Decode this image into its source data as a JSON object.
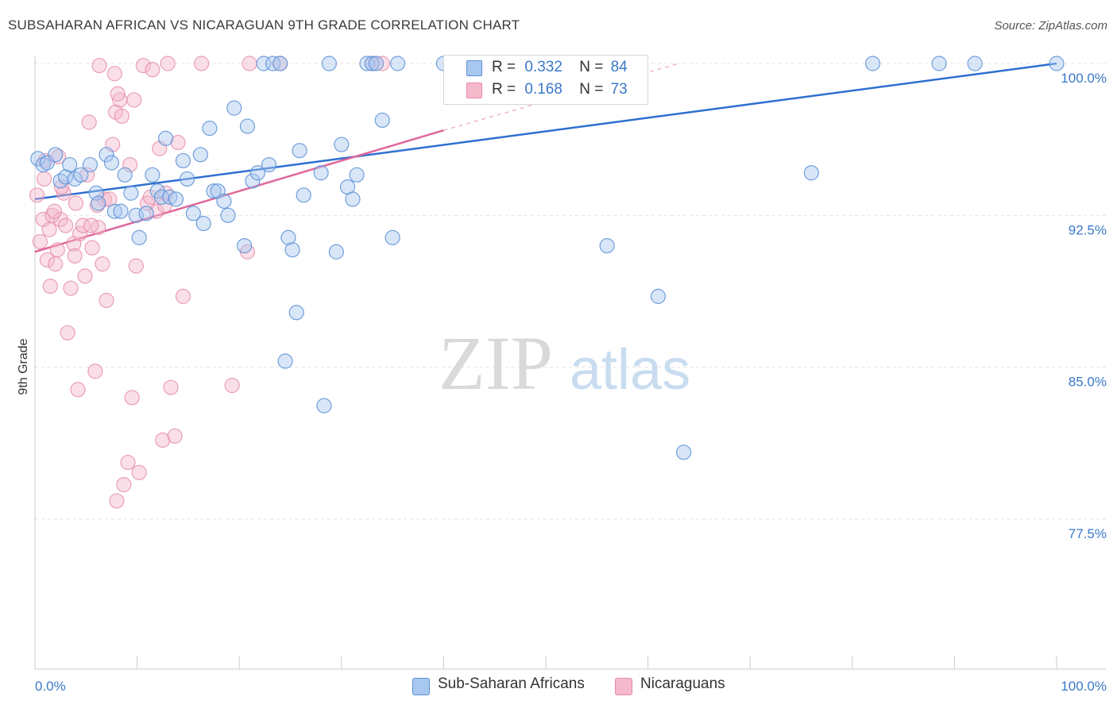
{
  "title": "SUBSAHARAN AFRICAN VS NICARAGUAN 9TH GRADE CORRELATION CHART",
  "source": "Source: ZipAtlas.com",
  "watermark": {
    "zip": "ZIP",
    "atlas": "atlas"
  },
  "colors": {
    "blue_fill": "#a9c8ef",
    "blue_stroke": "#5b8fd6",
    "blue_line": "#2e6fd0",
    "pink_fill": "#f5b9cc",
    "pink_stroke": "#e58aa7",
    "pink_line": "#e0679a",
    "tick_label": "#3a78c9",
    "grid": "#e3e3e3"
  },
  "stats": [
    {
      "r_label": "R =",
      "r_value": "0.332",
      "n_label": "N =",
      "n_value": "84",
      "series": "blue"
    },
    {
      "r_label": "R =",
      "r_value": "0.168",
      "n_label": "N =",
      "n_value": "73",
      "series": "pink"
    }
  ],
  "legend": [
    {
      "label": "Sub-Saharan Africans",
      "series": "blue"
    },
    {
      "label": "Nicaraguans",
      "series": "pink"
    }
  ],
  "chart_data": {
    "type": "scatter",
    "title": "SUBSAHARAN AFRICAN VS NICARAGUAN 9TH GRADE CORRELATION CHART",
    "xlabel": "",
    "ylabel": "9th Grade",
    "xlim": [
      0,
      100
    ],
    "ylim": [
      70.5,
      101
    ],
    "x_tick_labels": [
      "0.0%",
      "100.0%"
    ],
    "y_ticks": [
      {
        "value": 100,
        "label": "100.0%"
      },
      {
        "value": 92.5,
        "label": "92.5%"
      },
      {
        "value": 85,
        "label": "85.0%"
      },
      {
        "value": 77.5,
        "label": "77.5%"
      }
    ],
    "grid": true,
    "legend_position": "bottom",
    "series": [
      {
        "name": "Sub-Saharan Africans",
        "color": "#a9c8ef",
        "trend": {
          "x": [
            0,
            100
          ],
          "y": [
            93.3,
            100.0
          ]
        },
        "points": [
          [
            0.3,
            95.3
          ],
          [
            0.8,
            95.0
          ],
          [
            1.2,
            95.1
          ],
          [
            2.0,
            95.5
          ],
          [
            2.5,
            94.2
          ],
          [
            3.0,
            94.4
          ],
          [
            3.4,
            95.0
          ],
          [
            3.9,
            94.3
          ],
          [
            4.5,
            94.5
          ],
          [
            5.4,
            95.0
          ],
          [
            6.0,
            93.6
          ],
          [
            6.2,
            93.1
          ],
          [
            7.0,
            95.5
          ],
          [
            7.5,
            95.1
          ],
          [
            7.8,
            92.7
          ],
          [
            8.4,
            92.7
          ],
          [
            8.8,
            94.5
          ],
          [
            9.4,
            93.6
          ],
          [
            9.9,
            92.5
          ],
          [
            10.2,
            91.4
          ],
          [
            10.9,
            92.6
          ],
          [
            11.5,
            94.5
          ],
          [
            12.0,
            93.7
          ],
          [
            12.4,
            93.4
          ],
          [
            12.8,
            96.3
          ],
          [
            13.2,
            93.4
          ],
          [
            13.8,
            93.3
          ],
          [
            14.5,
            95.2
          ],
          [
            14.9,
            94.3
          ],
          [
            15.5,
            92.6
          ],
          [
            16.2,
            95.5
          ],
          [
            16.5,
            92.1
          ],
          [
            17.1,
            96.8
          ],
          [
            17.5,
            93.7
          ],
          [
            17.9,
            93.7
          ],
          [
            18.5,
            93.2
          ],
          [
            18.9,
            92.5
          ],
          [
            19.5,
            97.8
          ],
          [
            20.5,
            91.0
          ],
          [
            20.8,
            96.9
          ],
          [
            21.3,
            94.2
          ],
          [
            21.8,
            94.6
          ],
          [
            22.4,
            100.0
          ],
          [
            22.9,
            95.0
          ],
          [
            23.3,
            100.0
          ],
          [
            24.0,
            100.0
          ],
          [
            24.5,
            85.3
          ],
          [
            24.8,
            91.4
          ],
          [
            25.2,
            90.8
          ],
          [
            25.6,
            87.7
          ],
          [
            25.9,
            95.7
          ],
          [
            26.3,
            93.5
          ],
          [
            28.0,
            94.6
          ],
          [
            28.3,
            83.1
          ],
          [
            28.8,
            100.0
          ],
          [
            29.5,
            90.7
          ],
          [
            30.0,
            96.0
          ],
          [
            30.6,
            93.9
          ],
          [
            31.1,
            93.3
          ],
          [
            31.5,
            94.5
          ],
          [
            32.5,
            100.0
          ],
          [
            33.0,
            100.0
          ],
          [
            33.4,
            100.0
          ],
          [
            34.0,
            97.2
          ],
          [
            35.0,
            91.4
          ],
          [
            35.5,
            100.0
          ],
          [
            40.0,
            100.0
          ],
          [
            40.8,
            99.3
          ],
          [
            41.5,
            99.7
          ],
          [
            42.5,
            100.0
          ],
          [
            43.5,
            99.7
          ],
          [
            44.5,
            99.6
          ],
          [
            47.5,
            100.0
          ],
          [
            48.2,
            99.2
          ],
          [
            49.5,
            99.4
          ],
          [
            51.5,
            100.0
          ],
          [
            56.0,
            91.0
          ],
          [
            58.5,
            100.0
          ],
          [
            61.0,
            88.5
          ],
          [
            63.5,
            80.8
          ],
          [
            76.0,
            94.6
          ],
          [
            82.0,
            100.0
          ],
          [
            88.5,
            100.0
          ],
          [
            92.0,
            100.0
          ],
          [
            100.0,
            100.0
          ]
        ]
      },
      {
        "name": "Nicaraguans",
        "color": "#f5b9cc",
        "trend": {
          "x": [
            0,
            40
          ],
          "y": [
            90.7,
            96.7
          ],
          "dashed_to": [
            63,
            100.0
          ]
        },
        "points": [
          [
            0.2,
            93.5
          ],
          [
            0.5,
            91.2
          ],
          [
            0.8,
            92.3
          ],
          [
            1.0,
            95.2
          ],
          [
            1.2,
            90.3
          ],
          [
            1.5,
            89.0
          ],
          [
            1.7,
            92.5
          ],
          [
            2.0,
            90.1
          ],
          [
            2.2,
            90.8
          ],
          [
            2.5,
            92.3
          ],
          [
            2.8,
            93.6
          ],
          [
            3.0,
            92.0
          ],
          [
            3.2,
            86.7
          ],
          [
            3.5,
            88.9
          ],
          [
            3.8,
            91.1
          ],
          [
            4.0,
            93.1
          ],
          [
            4.2,
            83.9
          ],
          [
            4.4,
            91.6
          ],
          [
            4.7,
            92.0
          ],
          [
            4.9,
            89.5
          ],
          [
            5.1,
            94.5
          ],
          [
            5.3,
            97.1
          ],
          [
            5.6,
            90.9
          ],
          [
            5.9,
            84.8
          ],
          [
            6.2,
            91.9
          ],
          [
            6.3,
            99.9
          ],
          [
            6.6,
            90.1
          ],
          [
            6.8,
            93.3
          ],
          [
            7.0,
            88.3
          ],
          [
            7.3,
            93.3
          ],
          [
            7.6,
            96.0
          ],
          [
            7.9,
            97.6
          ],
          [
            8.3,
            98.2
          ],
          [
            8.5,
            97.4
          ],
          [
            8.7,
            79.2
          ],
          [
            9.1,
            80.3
          ],
          [
            9.3,
            95.0
          ],
          [
            9.5,
            83.5
          ],
          [
            9.7,
            98.2
          ],
          [
            9.9,
            90.0
          ],
          [
            10.2,
            79.8
          ],
          [
            10.6,
            99.9
          ],
          [
            11.0,
            93.1
          ],
          [
            11.5,
            99.7
          ],
          [
            11.9,
            92.7
          ],
          [
            12.2,
            95.8
          ],
          [
            12.5,
            81.4
          ],
          [
            12.8,
            93.6
          ],
          [
            13.0,
            100.0
          ],
          [
            13.3,
            84.0
          ],
          [
            13.7,
            81.6
          ],
          [
            14.0,
            96.1
          ],
          [
            14.5,
            88.5
          ],
          [
            16.3,
            100.0
          ],
          [
            19.3,
            84.1
          ],
          [
            20.8,
            90.7
          ],
          [
            21.0,
            100.0
          ],
          [
            24.0,
            100.0
          ],
          [
            33.0,
            100.0
          ],
          [
            34.0,
            100.0
          ],
          [
            8.0,
            78.4
          ],
          [
            7.8,
            99.5
          ],
          [
            8.1,
            98.5
          ],
          [
            6.1,
            93.0
          ],
          [
            5.5,
            92.0
          ],
          [
            3.9,
            90.5
          ],
          [
            2.6,
            93.9
          ],
          [
            1.9,
            92.7
          ],
          [
            1.4,
            91.8
          ],
          [
            0.9,
            94.3
          ],
          [
            2.3,
            95.4
          ],
          [
            11.3,
            93.4
          ],
          [
            12.7,
            93.0
          ]
        ]
      }
    ]
  }
}
